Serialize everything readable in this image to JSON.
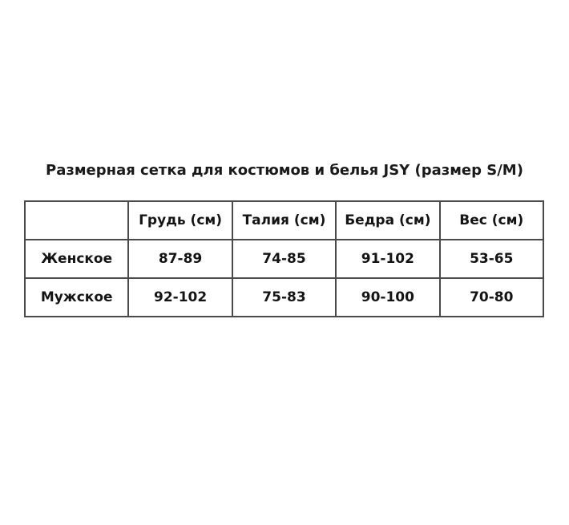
{
  "title": "Размерная сетка для костюмов и белья JSY (размер S/M)",
  "colors": {
    "background": "#ffffff",
    "text": "#1a1a1a",
    "table_border": "#4a4a4a"
  },
  "chart_data": {
    "type": "table",
    "title": "Размерная сетка для костюмов и белья JSY (размер S/M)",
    "columns": [
      "",
      "Грудь (см)",
      "Талия (см)",
      "Бедра (см)",
      "Вес (см)"
    ],
    "rows": [
      {
        "label": "Женское",
        "values": [
          "87-89",
          "74-85",
          "91-102",
          "53-65"
        ]
      },
      {
        "label": "Мужское",
        "values": [
          "92-102",
          "75-83",
          "90-100",
          "70-80"
        ]
      }
    ]
  }
}
